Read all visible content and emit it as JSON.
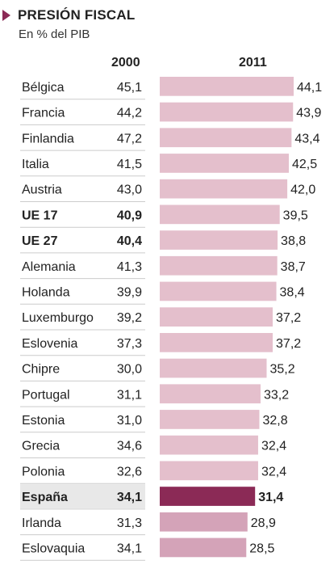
{
  "header": {
    "title": "PRESIÓN FISCAL",
    "subtitle": "En % del PIB",
    "col_2000": "2000",
    "col_2011": "2011"
  },
  "colors": {
    "accent": "#8b2a56",
    "bar_default": "#e4bfcc",
    "bar_highlight": "#8b2a56",
    "bar_below": "#d4a3b8",
    "highlight_bg": "#e8e8e8",
    "rule": "#cccccc"
  },
  "chart_data": {
    "type": "bar",
    "categories": [
      "Bélgica",
      "Francia",
      "Finlandia",
      "Italia",
      "Austria",
      "UE 17",
      "UE 27",
      "Alemania",
      "Holanda",
      "Luxemburgo",
      "Eslovenia",
      "Chipre",
      "Portugal",
      "Estonia",
      "Grecia",
      "Polonia",
      "España",
      "Irlanda",
      "Eslovaquia"
    ],
    "values_2000_labels": [
      "45,1",
      "44,2",
      "47,2",
      "41,5",
      "43,0",
      "40,9",
      "40,4",
      "41,3",
      "39,9",
      "39,2",
      "37,3",
      "30,0",
      "31,1",
      "31,0",
      "34,6",
      "32,6",
      "34,1",
      "31,3",
      "34,1"
    ],
    "values_2011": [
      44.1,
      43.9,
      43.4,
      42.5,
      42.0,
      39.5,
      38.8,
      38.7,
      38.4,
      37.2,
      37.2,
      35.2,
      33.2,
      32.8,
      32.4,
      32.4,
      31.4,
      28.9,
      28.5
    ],
    "values_2011_labels": [
      "44,1",
      "43,9",
      "43,4",
      "42,5",
      "42,0",
      "39,5",
      "38,8",
      "38,7",
      "38,4",
      "37,2",
      "37,2",
      "35,2",
      "33,2",
      "32,8",
      "32,4",
      "32,4",
      "31,4",
      "28,9",
      "28,5"
    ],
    "bold_rows": [
      "UE 17",
      "UE 27",
      "España"
    ],
    "highlight_row": "España",
    "below_rows": [
      "Irlanda",
      "Eslovaquia"
    ],
    "xlim": [
      0,
      44.1
    ]
  }
}
